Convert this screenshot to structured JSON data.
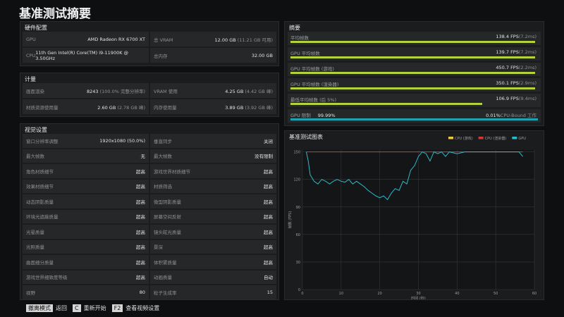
{
  "title": "基准测试摘要",
  "hardware": {
    "title": "硬件配置",
    "cells": [
      {
        "label": "GPU",
        "value": "AMD Radeon RX 6700 XT"
      },
      {
        "label": "总 VRAM",
        "value": "12.00 GB",
        "note": "(11.21 GB 可用)"
      },
      {
        "label": "CPU",
        "value": "11th Gen Intel(R) Core(TM) i9-11900K @ 3.50GHz"
      },
      {
        "label": "总内存",
        "value": "32.00 GB"
      }
    ]
  },
  "metrics": {
    "title": "计量",
    "cells": [
      {
        "label": "画面渲染",
        "value": "8243",
        "note": "(100.0% 完整分辨率)"
      },
      {
        "label": "VRAM 使用",
        "value": "4.25 GB",
        "note": "(4.42 GB 峰)"
      },
      {
        "label": "材质资源使用量",
        "value": "2.60 GB",
        "note": "(2.78 GB 峰)"
      },
      {
        "label": "内存使用量",
        "value": "3.89 GB",
        "note": "(3.92 GB 峰)"
      }
    ]
  },
  "settings": {
    "title": "视觉设置",
    "cells": [
      {
        "label": "窗口分辨率调整",
        "value": "1920x1080 (50.0%)"
      },
      {
        "label": "垂直同步",
        "value": "关闭"
      },
      {
        "label": "最大帧数",
        "value": "无"
      },
      {
        "label": "最大帧数",
        "value": "没有限制"
      },
      {
        "label": "角色材质细节",
        "value": "超高"
      },
      {
        "label": "游戏世界材质细节",
        "value": "超高"
      },
      {
        "label": "效果材质细节",
        "value": "超高"
      },
      {
        "label": "材质筛选",
        "value": "超高"
      },
      {
        "label": "动态阴影质量",
        "value": "超高"
      },
      {
        "label": "微型阴影质量",
        "value": "超高"
      },
      {
        "label": "环境光遮蔽质量",
        "value": "超高"
      },
      {
        "label": "屏幕空间反射",
        "value": "超高"
      },
      {
        "label": "光晕质量",
        "value": "超高"
      },
      {
        "label": "镜头眩光质量",
        "value": "超高"
      },
      {
        "label": "光照质量",
        "value": "超高"
      },
      {
        "label": "景深",
        "value": "超高"
      },
      {
        "label": "曲面细分质量",
        "value": "超高"
      },
      {
        "label": "体积雾质量",
        "value": "超高"
      },
      {
        "label": "游戏世界细致度等级",
        "value": "超高"
      },
      {
        "label": "动画质量",
        "value": "自动"
      },
      {
        "label": "视野",
        "value": "80"
      },
      {
        "label": "粒子生成率",
        "value": "15"
      }
    ]
  },
  "summary": {
    "title": "摘要",
    "items": [
      {
        "label": "平均帧数",
        "value": "138.4 FPS",
        "note": "(7.2ms)"
      },
      {
        "label": "GPU 平均帧数",
        "value": "139.7 FPS",
        "note": "(7.2ms)"
      },
      {
        "label": "GPU 平均帧数 (游戏)",
        "value": "450.7 FPS",
        "note": "(2.2ms)"
      },
      {
        "label": "GPU 平均帧数 (渲染器)",
        "value": "350.1 FPS",
        "note": "(2.9ms)"
      },
      {
        "label": "最低平均帧数 (后 5%)",
        "value": "106.9 FPS",
        "note": "(9.4ms)"
      }
    ],
    "limit": {
      "label": "GPU 限制",
      "value": "99.99%",
      "right_value": "0.01%",
      "right_label": "CPU-Bound 工作"
    }
  },
  "chart_data": {
    "type": "line",
    "title": "基准测试图表",
    "x_label": "时间 (秒)",
    "y_label": "帧数 (FPS)",
    "x": [
      1,
      1.5,
      2,
      3,
      4,
      5,
      6,
      7,
      8,
      9,
      10,
      11,
      12,
      13,
      14,
      15,
      16,
      17,
      18,
      19,
      20,
      21,
      22,
      23,
      24,
      25,
      26,
      27,
      28,
      29,
      30,
      31,
      32,
      33,
      34,
      35,
      36,
      37,
      38,
      40,
      42,
      44,
      46,
      48,
      50,
      52,
      54,
      56,
      57
    ],
    "series": [
      {
        "name": "CPU (游戏)",
        "color": "#e8c84a",
        "values": [
          null,
          null,
          null,
          null,
          null,
          null,
          null,
          null,
          null,
          null,
          null,
          null,
          null,
          null,
          null,
          null,
          null,
          null,
          null,
          null,
          null,
          null,
          null,
          null,
          null,
          null,
          null,
          null,
          null,
          null,
          null,
          null,
          null,
          null,
          null,
          null,
          null,
          null,
          null,
          null,
          null,
          null,
          null,
          null,
          null,
          null,
          null,
          null,
          null
        ]
      },
      {
        "name": "CPU (渲染器)",
        "color": "#d23a3a",
        "values": [
          150,
          150,
          150,
          150,
          150,
          150,
          150,
          150,
          150,
          150,
          150,
          150,
          150,
          150,
          150,
          150,
          150,
          150,
          150,
          150,
          150,
          150,
          150,
          150,
          150,
          150,
          150,
          150,
          150,
          150,
          150,
          150,
          150,
          150,
          150,
          150,
          150,
          150,
          150,
          150,
          150,
          150,
          150,
          150,
          150,
          150,
          150,
          150,
          150
        ]
      },
      {
        "name": "GPU",
        "color": "#2fb8c8",
        "values": [
          150,
          140,
          125,
          118,
          115,
          120,
          118,
          115,
          118,
          120,
          118,
          117,
          120,
          115,
          118,
          115,
          112,
          108,
          105,
          102,
          100,
          102,
          98,
          105,
          110,
          108,
          118,
          115,
          130,
          135,
          145,
          150,
          148,
          140,
          150,
          148,
          150,
          145,
          150,
          148,
          150,
          150,
          150,
          150,
          150,
          150,
          150,
          150,
          145
        ]
      }
    ],
    "xlim": [
      0,
      60
    ],
    "ylim": [
      0,
      152
    ],
    "xticks": [
      0,
      10,
      20,
      30,
      40,
      50,
      60
    ],
    "yticks": [
      0,
      30,
      60,
      90,
      120,
      150
    ]
  },
  "footer": [
    {
      "key": "撤离模式",
      "label": "返回"
    },
    {
      "key": "C",
      "label": "重新开始"
    },
    {
      "key": "F2",
      "label": "查看视频设置"
    }
  ]
}
